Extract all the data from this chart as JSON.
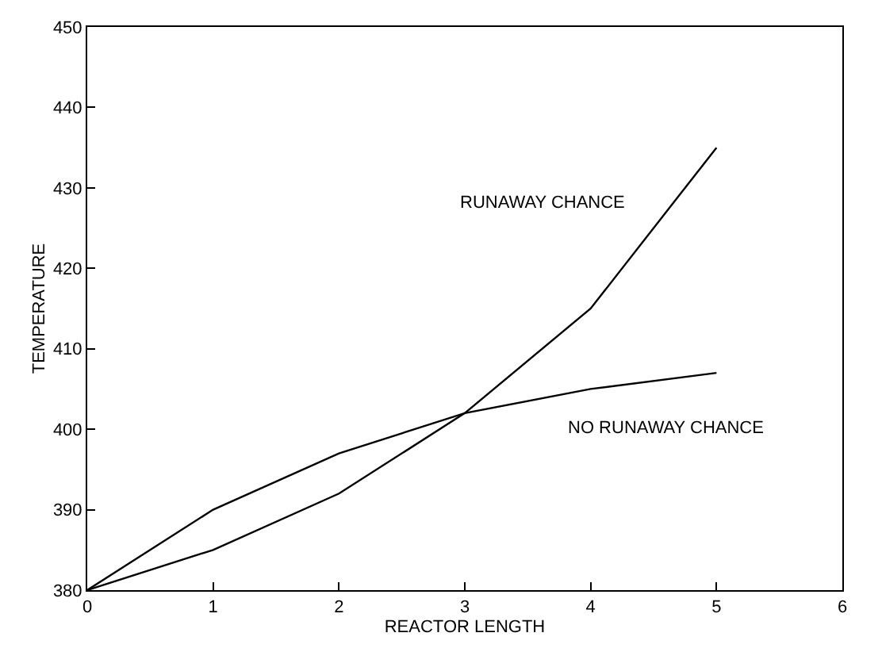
{
  "chart_data": {
    "type": "line",
    "xlabel": "REACTOR LENGTH",
    "ylabel": "TEMPERATURE",
    "x": [
      0,
      1,
      2,
      3,
      4,
      5
    ],
    "series": [
      {
        "name": "RUNAWAY CHANCE",
        "color": "#000000",
        "values": [
          380,
          385,
          392,
          402,
          415,
          435
        ]
      },
      {
        "name": "NO RUNAWAY CHANCE",
        "color": "#000000",
        "values": [
          380,
          390,
          397,
          402,
          405,
          407
        ]
      }
    ],
    "xlim": [
      0,
      6
    ],
    "xticks": [
      0,
      1,
      2,
      3,
      4,
      5,
      6
    ],
    "ylim": [
      380,
      450
    ],
    "yticks": [
      380,
      390,
      400,
      410,
      420,
      430,
      440,
      450
    ],
    "legend": false,
    "marker": "none",
    "line_style": "solid"
  }
}
